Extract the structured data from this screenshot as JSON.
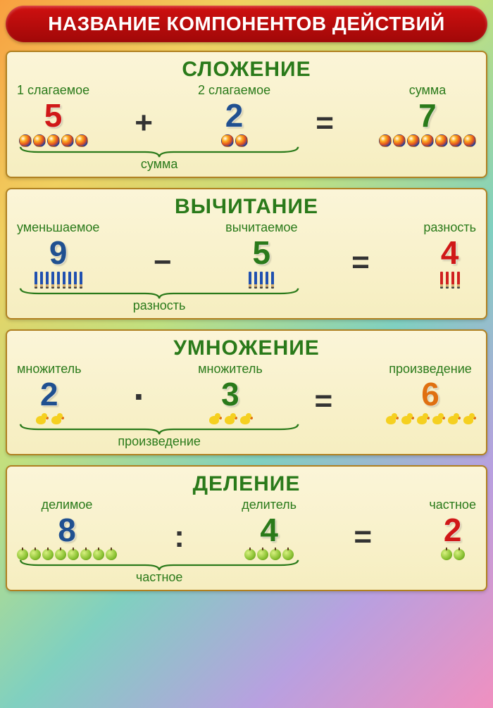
{
  "banner_title": "НАЗВАНИЕ КОМПОНЕНТОВ ДЕЙСТВИЙ",
  "colors": {
    "banner_bg": "#c00c0c",
    "title_green": "#2a7a1a",
    "card_bg": "#f8f0c8",
    "card_border": "#b08020"
  },
  "operations": [
    {
      "key": "addition",
      "title": "СЛОЖЕНИЕ",
      "label1": "1 слагаемое",
      "value1": "5",
      "color1": "#d01818",
      "icon1_count": 5,
      "operator": "+",
      "label2": "2 слагаемое",
      "value2": "2",
      "color2": "#205090",
      "icon2_count": 2,
      "eq": "=",
      "label3": "сумма",
      "value3": "7",
      "color3": "#2a7a1a",
      "icon3_count": 7,
      "brace_label": "сумма",
      "icon_type": "ball"
    },
    {
      "key": "subtraction",
      "title": "ВЫЧИТАНИЕ",
      "label1": "уменьшаемое",
      "value1": "9",
      "color1": "#205090",
      "icon1_count": 9,
      "operator": "−",
      "label2": "вычитаемое",
      "value2": "5",
      "color2": "#2a7a1a",
      "icon2_count": 5,
      "eq": "=",
      "label3": "разность",
      "value3": "4",
      "color3": "#d01818",
      "icon3_count": 4,
      "brace_label": "разность",
      "icon_type": "pencil"
    },
    {
      "key": "multiplication",
      "title": "УМНОЖЕНИЕ",
      "label1": "множитель",
      "value1": "2",
      "color1": "#205090",
      "icon1_count": 2,
      "operator": "·",
      "label2": "множитель",
      "value2": "3",
      "color2": "#2a7a1a",
      "icon2_count": 3,
      "eq": "=",
      "label3": "произведение",
      "value3": "6",
      "color3": "#e07010",
      "icon3_count": 6,
      "brace_label": "произведение",
      "icon_type": "duck"
    },
    {
      "key": "division",
      "title": "ДЕЛЕНИЕ",
      "label1": "делимое",
      "value1": "8",
      "color1": "#205090",
      "icon1_count": 8,
      "operator": ":",
      "label2": "делитель",
      "value2": "4",
      "color2": "#2a7a1a",
      "icon2_count": 4,
      "eq": "=",
      "label3": "частное",
      "value3": "2",
      "color3": "#d01818",
      "icon3_count": 2,
      "brace_label": "частное",
      "icon_type": "apple"
    }
  ]
}
